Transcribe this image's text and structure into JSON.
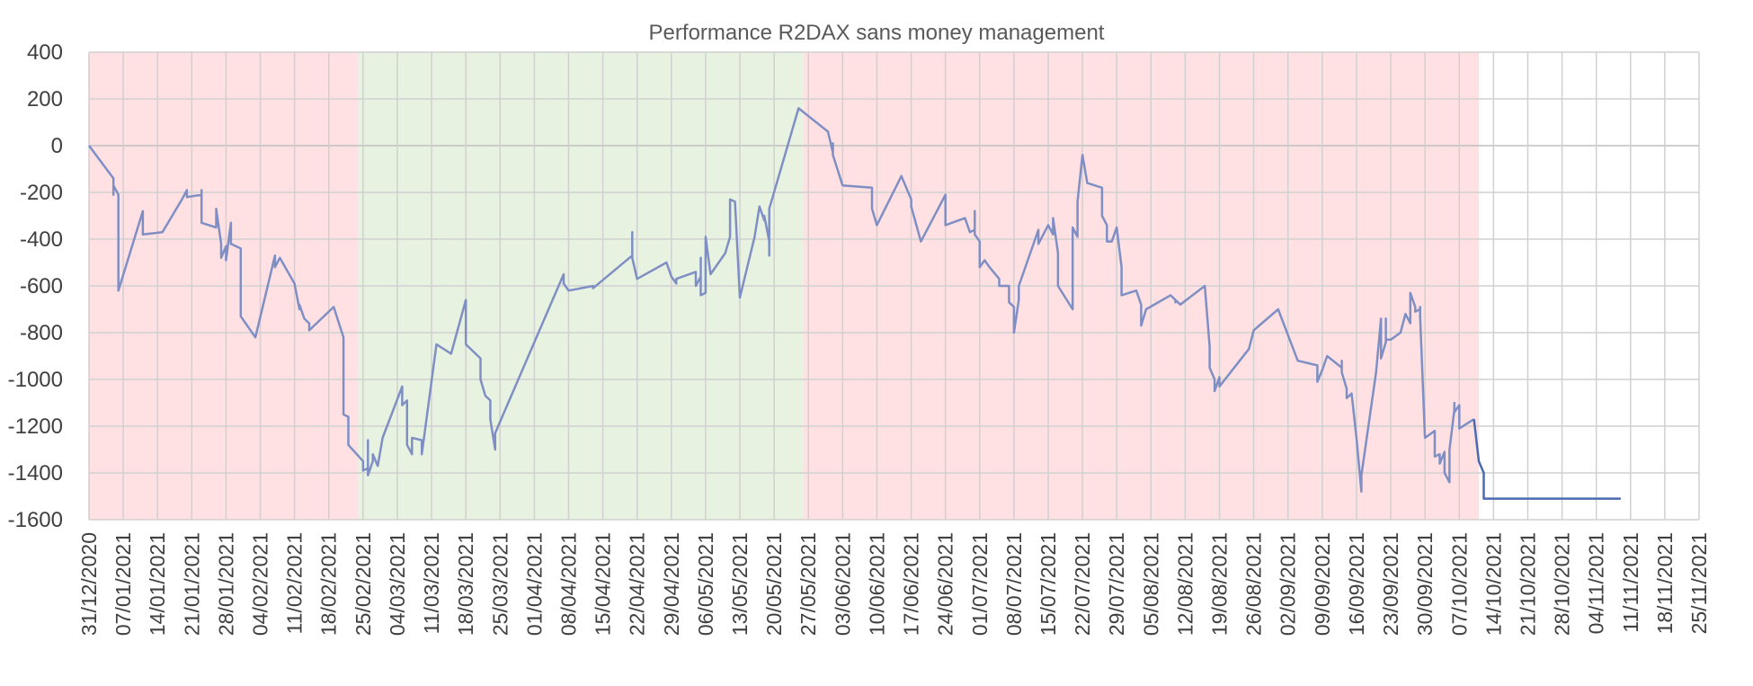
{
  "chart_data": {
    "type": "line",
    "title": "Performance R2DAX sans money management",
    "xlabel": "",
    "ylabel": "",
    "ylim": [
      -1600,
      400
    ],
    "yticks": [
      400,
      200,
      0,
      -200,
      -400,
      -600,
      -800,
      -1000,
      -1200,
      -1400,
      -1600
    ],
    "xlim": [
      "31/12/2020",
      "25/11/2021"
    ],
    "xticks": [
      "31/12/2020",
      "07/01/2021",
      "14/01/2021",
      "21/01/2021",
      "28/01/2021",
      "04/02/2021",
      "11/02/2021",
      "18/02/2021",
      "25/02/2021",
      "04/03/2021",
      "11/03/2021",
      "18/03/2021",
      "25/03/2021",
      "01/04/2021",
      "08/04/2021",
      "15/04/2021",
      "22/04/2021",
      "29/04/2021",
      "06/05/2021",
      "13/05/2021",
      "20/05/2021",
      "27/05/2021",
      "03/06/2021",
      "10/06/2021",
      "17/06/2021",
      "24/06/2021",
      "01/07/2021",
      "08/07/2021",
      "15/07/2021",
      "22/07/2021",
      "29/07/2021",
      "05/08/2021",
      "12/08/2021",
      "19/08/2021",
      "26/08/2021",
      "02/09/2021",
      "09/09/2021",
      "16/09/2021",
      "23/09/2021",
      "30/09/2021",
      "07/10/2021",
      "14/10/2021",
      "21/10/2021",
      "28/10/2021",
      "04/11/2021",
      "11/11/2021",
      "18/11/2021",
      "25/11/2021"
    ],
    "grid": true,
    "regions": [
      {
        "start": "31/12/2020",
        "end": "24/02/2021",
        "color": "#ffe1e4"
      },
      {
        "start": "24/02/2021",
        "end": "26/05/2021",
        "color": "#e8f2e0"
      },
      {
        "start": "26/05/2021",
        "end": "11/10/2021",
        "color": "#ffe1e4"
      }
    ],
    "series": [
      {
        "color": "#7f8fc4",
        "points": [
          [
            "31/12/2020",
            0
          ],
          [
            "05/01/2021",
            -140
          ],
          [
            "05/01/2021",
            -210
          ],
          [
            "05/01/2021",
            -170
          ],
          [
            "06/01/2021",
            -210
          ],
          [
            "06/01/2021",
            -620
          ],
          [
            "11/01/2021",
            -280
          ],
          [
            "11/01/2021",
            -380
          ],
          [
            "15/01/2021",
            -370
          ],
          [
            "19/01/2021",
            -230
          ],
          [
            "20/01/2021",
            -190
          ],
          [
            "20/01/2021",
            -220
          ],
          [
            "23/01/2021",
            -210
          ],
          [
            "23/01/2021",
            -190
          ],
          [
            "23/01/2021",
            -330
          ],
          [
            "26/01/2021",
            -350
          ],
          [
            "26/01/2021",
            -270
          ],
          [
            "27/01/2021",
            -420
          ],
          [
            "27/01/2021",
            -480
          ],
          [
            "28/01/2021",
            -430
          ],
          [
            "28/01/2021",
            -490
          ],
          [
            "29/01/2021",
            -330
          ],
          [
            "29/01/2021",
            -420
          ],
          [
            "30/01/2021",
            -430
          ],
          [
            "31/01/2021",
            -440
          ],
          [
            "31/01/2021",
            -730
          ],
          [
            "03/02/2021",
            -820
          ],
          [
            "07/02/2021",
            -470
          ],
          [
            "07/02/2021",
            -520
          ],
          [
            "08/02/2021",
            -480
          ],
          [
            "11/02/2021",
            -590
          ],
          [
            "12/02/2021",
            -700
          ],
          [
            "12/02/2021",
            -680
          ],
          [
            "13/02/2021",
            -740
          ],
          [
            "14/02/2021",
            -760
          ],
          [
            "14/02/2021",
            -790
          ],
          [
            "19/02/2021",
            -690
          ],
          [
            "21/02/2021",
            -820
          ],
          [
            "21/02/2021",
            -1150
          ],
          [
            "22/02/2021",
            -1160
          ],
          [
            "22/02/2021",
            -1280
          ],
          [
            "25/02/2021",
            -1350
          ],
          [
            "25/02/2021",
            -1390
          ],
          [
            "26/02/2021",
            -1380
          ],
          [
            "26/02/2021",
            -1260
          ],
          [
            "26/02/2021",
            -1410
          ],
          [
            "27/02/2021",
            -1350
          ],
          [
            "27/02/2021",
            -1320
          ],
          [
            "28/02/2021",
            -1370
          ],
          [
            "01/03/2021",
            -1250
          ],
          [
            "05/03/2021",
            -1030
          ],
          [
            "05/03/2021",
            -1110
          ],
          [
            "06/03/2021",
            -1090
          ],
          [
            "06/03/2021",
            -1280
          ],
          [
            "07/03/2021",
            -1320
          ],
          [
            "07/03/2021",
            -1250
          ],
          [
            "09/03/2021",
            -1260
          ],
          [
            "09/03/2021",
            -1320
          ],
          [
            "12/03/2021",
            -850
          ],
          [
            "15/03/2021",
            -890
          ],
          [
            "18/03/2021",
            -660
          ],
          [
            "18/03/2021",
            -850
          ],
          [
            "21/03/2021",
            -910
          ],
          [
            "21/03/2021",
            -1000
          ],
          [
            "22/03/2021",
            -1070
          ],
          [
            "23/03/2021",
            -1090
          ],
          [
            "23/03/2021",
            -1170
          ],
          [
            "24/03/2021",
            -1300
          ],
          [
            "24/03/2021",
            -1230
          ],
          [
            "07/04/2021",
            -550
          ],
          [
            "07/04/2021",
            -590
          ],
          [
            "08/04/2021",
            -620
          ],
          [
            "13/04/2021",
            -600
          ],
          [
            "13/04/2021",
            -610
          ],
          [
            "21/04/2021",
            -470
          ],
          [
            "21/04/2021",
            -370
          ],
          [
            "21/04/2021",
            -480
          ],
          [
            "22/04/2021",
            -570
          ],
          [
            "28/04/2021",
            -500
          ],
          [
            "29/04/2021",
            -560
          ],
          [
            "30/04/2021",
            -590
          ],
          [
            "30/04/2021",
            -570
          ],
          [
            "04/05/2021",
            -540
          ],
          [
            "04/05/2021",
            -600
          ],
          [
            "05/05/2021",
            -560
          ],
          [
            "05/05/2021",
            -480
          ],
          [
            "05/05/2021",
            -640
          ],
          [
            "06/05/2021",
            -630
          ],
          [
            "06/05/2021",
            -390
          ],
          [
            "07/05/2021",
            -550
          ],
          [
            "10/05/2021",
            -460
          ],
          [
            "11/05/2021",
            -390
          ],
          [
            "11/05/2021",
            -230
          ],
          [
            "12/05/2021",
            -240
          ],
          [
            "13/05/2021",
            -650
          ],
          [
            "16/05/2021",
            -390
          ],
          [
            "17/05/2021",
            -260
          ],
          [
            "18/05/2021",
            -320
          ],
          [
            "18/05/2021",
            -300
          ],
          [
            "19/05/2021",
            -410
          ],
          [
            "19/05/2021",
            -470
          ],
          [
            "19/05/2021",
            -270
          ],
          [
            "25/05/2021",
            160
          ],
          [
            "31/05/2021",
            60
          ],
          [
            "01/06/2021",
            -30
          ],
          [
            "01/06/2021",
            10
          ],
          [
            "01/06/2021",
            -40
          ],
          [
            "03/06/2021",
            -170
          ],
          [
            "09/06/2021",
            -180
          ],
          [
            "09/06/2021",
            -270
          ],
          [
            "10/06/2021",
            -340
          ],
          [
            "15/06/2021",
            -130
          ],
          [
            "17/06/2021",
            -230
          ],
          [
            "17/06/2021",
            -260
          ],
          [
            "19/06/2021",
            -410
          ],
          [
            "22/06/2021",
            -290
          ],
          [
            "24/06/2021",
            -210
          ],
          [
            "24/06/2021",
            -340
          ],
          [
            "28/06/2021",
            -310
          ],
          [
            "29/06/2021",
            -370
          ],
          [
            "30/06/2021",
            -360
          ],
          [
            "30/06/2021",
            -280
          ],
          [
            "30/06/2021",
            -380
          ],
          [
            "01/07/2021",
            -410
          ],
          [
            "01/07/2021",
            -520
          ],
          [
            "02/07/2021",
            -490
          ],
          [
            "03/07/2021",
            -520
          ],
          [
            "05/07/2021",
            -570
          ],
          [
            "05/07/2021",
            -600
          ],
          [
            "07/07/2021",
            -600
          ],
          [
            "07/07/2021",
            -670
          ],
          [
            "08/07/2021",
            -690
          ],
          [
            "08/07/2021",
            -800
          ],
          [
            "09/07/2021",
            -660
          ],
          [
            "09/07/2021",
            -600
          ],
          [
            "13/07/2021",
            -360
          ],
          [
            "13/07/2021",
            -420
          ],
          [
            "15/07/2021",
            -340
          ],
          [
            "16/07/2021",
            -380
          ],
          [
            "16/07/2021",
            -310
          ],
          [
            "17/07/2021",
            -460
          ],
          [
            "17/07/2021",
            -600
          ],
          [
            "20/07/2021",
            -700
          ],
          [
            "20/07/2021",
            -390
          ],
          [
            "20/07/2021",
            -350
          ],
          [
            "21/07/2021",
            -390
          ],
          [
            "21/07/2021",
            -240
          ],
          [
            "22/07/2021",
            -40
          ],
          [
            "23/07/2021",
            -160
          ],
          [
            "26/07/2021",
            -180
          ],
          [
            "26/07/2021",
            -300
          ],
          [
            "27/07/2021",
            -340
          ],
          [
            "27/07/2021",
            -410
          ],
          [
            "28/07/2021",
            -410
          ],
          [
            "29/07/2021",
            -350
          ],
          [
            "30/07/2021",
            -520
          ],
          [
            "30/07/2021",
            -640
          ],
          [
            "02/08/2021",
            -620
          ],
          [
            "03/08/2021",
            -680
          ],
          [
            "03/08/2021",
            -770
          ],
          [
            "04/08/2021",
            -700
          ],
          [
            "09/08/2021",
            -640
          ],
          [
            "10/08/2021",
            -660
          ],
          [
            "10/08/2021",
            -670
          ],
          [
            "10/08/2021",
            -660
          ],
          [
            "11/08/2021",
            -680
          ],
          [
            "16/08/2021",
            -600
          ],
          [
            "17/08/2021",
            -860
          ],
          [
            "17/08/2021",
            -950
          ],
          [
            "18/08/2021",
            -1000
          ],
          [
            "18/08/2021",
            -1050
          ],
          [
            "19/08/2021",
            -990
          ],
          [
            "19/08/2021",
            -1030
          ],
          [
            "25/08/2021",
            -870
          ],
          [
            "26/08/2021",
            -790
          ],
          [
            "31/08/2021",
            -700
          ],
          [
            "04/09/2021",
            -920
          ],
          [
            "08/09/2021",
            -940
          ],
          [
            "08/09/2021",
            -1010
          ],
          [
            "09/09/2021",
            -960
          ],
          [
            "10/09/2021",
            -900
          ],
          [
            "13/09/2021",
            -950
          ],
          [
            "13/09/2021",
            -920
          ],
          [
            "13/09/2021",
            -970
          ],
          [
            "14/09/2021",
            -1040
          ],
          [
            "14/09/2021",
            -1080
          ],
          [
            "15/09/2021",
            -1060
          ],
          [
            "16/09/2021",
            -1250
          ],
          [
            "17/09/2021",
            -1480
          ],
          [
            "17/09/2021",
            -1410
          ],
          [
            "20/09/2021",
            -970
          ],
          [
            "21/09/2021",
            -740
          ],
          [
            "21/09/2021",
            -910
          ],
          [
            "22/09/2021",
            -840
          ],
          [
            "22/09/2021",
            -740
          ],
          [
            "22/09/2021",
            -830
          ],
          [
            "23/09/2021",
            -830
          ],
          [
            "25/09/2021",
            -800
          ],
          [
            "26/09/2021",
            -720
          ],
          [
            "27/09/2021",
            -760
          ],
          [
            "27/09/2021",
            -630
          ],
          [
            "28/09/2021",
            -690
          ],
          [
            "28/09/2021",
            -710
          ],
          [
            "29/09/2021",
            -700
          ],
          [
            "29/09/2021",
            -690
          ],
          [
            "29/09/2021",
            -730
          ],
          [
            "30/09/2021",
            -1250
          ],
          [
            "02/10/2021",
            -1220
          ],
          [
            "02/10/2021",
            -1330
          ],
          [
            "03/10/2021",
            -1320
          ],
          [
            "03/10/2021",
            -1360
          ],
          [
            "04/10/2021",
            -1310
          ],
          [
            "04/10/2021",
            -1400
          ],
          [
            "05/10/2021",
            -1440
          ],
          [
            "05/10/2021",
            -1300
          ],
          [
            "06/10/2021",
            -1130
          ],
          [
            "06/10/2021",
            -1100
          ],
          [
            "06/10/2021",
            -1140
          ],
          [
            "07/10/2021",
            -1110
          ],
          [
            "07/10/2021",
            -1210
          ],
          [
            "10/10/2021",
            -1170
          ]
        ]
      },
      {
        "color": "#4a6bb0",
        "points": [
          [
            "10/10/2021",
            -1170
          ],
          [
            "11/10/2021",
            -1350
          ],
          [
            "12/10/2021",
            -1400
          ],
          [
            "12/10/2021",
            -1510
          ],
          [
            "09/11/2021",
            -1510
          ]
        ]
      }
    ]
  }
}
